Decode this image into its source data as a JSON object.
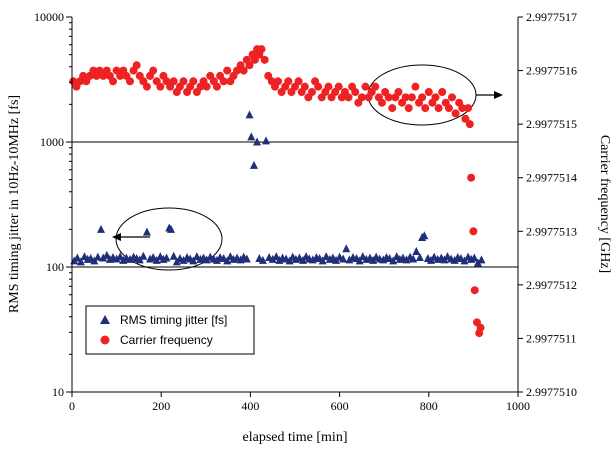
{
  "chart_data": {
    "type": "scatter",
    "xlabel": "elapsed time [min]",
    "ylabel_left": "RMS timing jitter in 10Hz-10MHz [fs]",
    "ylabel_right": "Carrier frequency [GHz]",
    "xlim": [
      0,
      1000
    ],
    "ylim_left": [
      10,
      10000
    ],
    "ylim_right": [
      2.997751,
      2.9977517
    ],
    "yscale_left": "log",
    "x_ticks": [
      "0",
      "200",
      "400",
      "600",
      "800",
      "1000"
    ],
    "y_left_ticks": [
      "10",
      "100",
      "1000",
      "10000"
    ],
    "y_right_ticks": [
      "2.9977510",
      "2.9977511",
      "2.9977512",
      "2.9977513",
      "2.9977514",
      "2.9977515",
      "2.9977516",
      "2.9977517"
    ],
    "gridlines_left": [
      100,
      1000
    ],
    "legend_position": "bottom-left",
    "series": [
      {
        "name": "RMS timing jitter [fs]",
        "axis": "left",
        "color": "#1f2f7a",
        "marker": "triangle",
        "points": [
          [
            5,
            112
          ],
          [
            12,
            118
          ],
          [
            20,
            110
          ],
          [
            28,
            121
          ],
          [
            35,
            115
          ],
          [
            42,
            117
          ],
          [
            50,
            112
          ],
          [
            58,
            120
          ],
          [
            65,
            200
          ],
          [
            70,
            118
          ],
          [
            78,
            124
          ],
          [
            85,
            115
          ],
          [
            92,
            119
          ],
          [
            100,
            116
          ],
          [
            108,
            121
          ],
          [
            115,
            113
          ],
          [
            122,
            118
          ],
          [
            130,
            115
          ],
          [
            138,
            120
          ],
          [
            145,
            117
          ],
          [
            152,
            114
          ],
          [
            160,
            122
          ],
          [
            168,
            190
          ],
          [
            175,
            116
          ],
          [
            182,
            119
          ],
          [
            190,
            113
          ],
          [
            198,
            121
          ],
          [
            205,
            115
          ],
          [
            212,
            118
          ],
          [
            218,
            205
          ],
          [
            222,
            200
          ],
          [
            228,
            122
          ],
          [
            235,
            110
          ],
          [
            242,
            117
          ],
          [
            250,
            113
          ],
          [
            258,
            119
          ],
          [
            265,
            116
          ],
          [
            272,
            112
          ],
          [
            280,
            121
          ],
          [
            288,
            115
          ],
          [
            295,
            118
          ],
          [
            302,
            114
          ],
          [
            310,
            120
          ],
          [
            318,
            116
          ],
          [
            325,
            113
          ],
          [
            332,
            119
          ],
          [
            340,
            117
          ],
          [
            348,
            112
          ],
          [
            355,
            121
          ],
          [
            362,
            115
          ],
          [
            370,
            118
          ],
          [
            378,
            114
          ],
          [
            385,
            120
          ],
          [
            392,
            116
          ],
          [
            398,
            1650
          ],
          [
            402,
            1100
          ],
          [
            408,
            650
          ],
          [
            415,
            1000
          ],
          [
            420,
            117
          ],
          [
            428,
            113
          ],
          [
            435,
            1020
          ],
          [
            442,
            119
          ],
          [
            450,
            115
          ],
          [
            458,
            121
          ],
          [
            465,
            113
          ],
          [
            472,
            118
          ],
          [
            480,
            116
          ],
          [
            488,
            112
          ],
          [
            495,
            120
          ],
          [
            502,
            115
          ],
          [
            510,
            118
          ],
          [
            518,
            113
          ],
          [
            525,
            121
          ],
          [
            532,
            116
          ],
          [
            540,
            114
          ],
          [
            548,
            119
          ],
          [
            555,
            117
          ],
          [
            562,
            112
          ],
          [
            570,
            121
          ],
          [
            578,
            115
          ],
          [
            585,
            118
          ],
          [
            592,
            113
          ],
          [
            600,
            120
          ],
          [
            608,
            116
          ],
          [
            615,
            140
          ],
          [
            622,
            114
          ],
          [
            630,
            119
          ],
          [
            638,
            117
          ],
          [
            645,
            112
          ],
          [
            652,
            121
          ],
          [
            660,
            115
          ],
          [
            668,
            118
          ],
          [
            675,
            113
          ],
          [
            682,
            120
          ],
          [
            690,
            116
          ],
          [
            698,
            114
          ],
          [
            705,
            119
          ],
          [
            712,
            117
          ],
          [
            720,
            112
          ],
          [
            728,
            121
          ],
          [
            735,
            115
          ],
          [
            742,
            118
          ],
          [
            750,
            114
          ],
          [
            758,
            120
          ],
          [
            765,
            116
          ],
          [
            772,
            133
          ],
          [
            780,
            119
          ],
          [
            785,
            172
          ],
          [
            790,
            178
          ],
          [
            798,
            117
          ],
          [
            805,
            113
          ],
          [
            812,
            120
          ],
          [
            820,
            115
          ],
          [
            828,
            118
          ],
          [
            835,
            114
          ],
          [
            842,
            121
          ],
          [
            850,
            116
          ],
          [
            858,
            113
          ],
          [
            865,
            119
          ],
          [
            872,
            117
          ],
          [
            880,
            112
          ],
          [
            888,
            120
          ],
          [
            895,
            115
          ],
          [
            902,
            118
          ],
          [
            910,
            108
          ],
          [
            918,
            114
          ]
        ]
      },
      {
        "name": "Carrier frequency",
        "axis": "right",
        "color": "#ee2222",
        "marker": "circle",
        "points": [
          [
            3,
            2.99775158
          ],
          [
            10,
            2.99775157
          ],
          [
            18,
            2.99775158
          ],
          [
            25,
            2.99775159
          ],
          [
            32,
            2.99775158
          ],
          [
            40,
            2.99775159
          ],
          [
            48,
            2.9977516
          ],
          [
            55,
            2.99775159
          ],
          [
            62,
            2.9977516
          ],
          [
            70,
            2.99775159
          ],
          [
            78,
            2.9977516
          ],
          [
            85,
            2.99775159
          ],
          [
            92,
            2.99775158
          ],
          [
            100,
            2.9977516
          ],
          [
            108,
            2.99775159
          ],
          [
            115,
            2.9977516
          ],
          [
            122,
            2.99775159
          ],
          [
            130,
            2.99775158
          ],
          [
            138,
            2.9977516
          ],
          [
            145,
            2.99775161
          ],
          [
            152,
            2.99775159
          ],
          [
            160,
            2.99775158
          ],
          [
            168,
            2.99775157
          ],
          [
            175,
            2.99775159
          ],
          [
            182,
            2.9977516
          ],
          [
            190,
            2.99775158
          ],
          [
            198,
            2.99775157
          ],
          [
            205,
            2.99775159
          ],
          [
            212,
            2.99775158
          ],
          [
            220,
            2.99775157
          ],
          [
            228,
            2.99775158
          ],
          [
            235,
            2.99775156
          ],
          [
            242,
            2.99775157
          ],
          [
            250,
            2.99775158
          ],
          [
            258,
            2.99775156
          ],
          [
            265,
            2.99775157
          ],
          [
            272,
            2.99775158
          ],
          [
            280,
            2.99775156
          ],
          [
            288,
            2.99775157
          ],
          [
            295,
            2.99775158
          ],
          [
            302,
            2.99775157
          ],
          [
            310,
            2.99775159
          ],
          [
            318,
            2.99775158
          ],
          [
            325,
            2.99775157
          ],
          [
            332,
            2.99775159
          ],
          [
            340,
            2.99775158
          ],
          [
            348,
            2.9977516
          ],
          [
            355,
            2.99775158
          ],
          [
            362,
            2.99775159
          ],
          [
            370,
            2.9977516
          ],
          [
            378,
            2.99775161
          ],
          [
            385,
            2.9977516
          ],
          [
            392,
            2.99775162
          ],
          [
            398,
            2.99775161
          ],
          [
            405,
            2.99775163
          ],
          [
            410,
            2.99775162
          ],
          [
            415,
            2.99775164
          ],
          [
            420,
            2.99775163
          ],
          [
            425,
            2.99775164
          ],
          [
            432,
            2.99775162
          ],
          [
            440,
            2.99775159
          ],
          [
            448,
            2.99775158
          ],
          [
            455,
            2.99775157
          ],
          [
            462,
            2.99775158
          ],
          [
            470,
            2.99775156
          ],
          [
            478,
            2.99775157
          ],
          [
            485,
            2.99775158
          ],
          [
            492,
            2.99775156
          ],
          [
            500,
            2.99775157
          ],
          [
            508,
            2.99775158
          ],
          [
            515,
            2.99775156
          ],
          [
            522,
            2.99775157
          ],
          [
            530,
            2.99775155
          ],
          [
            538,
            2.99775156
          ],
          [
            545,
            2.99775158
          ],
          [
            552,
            2.99775157
          ],
          [
            560,
            2.99775155
          ],
          [
            568,
            2.99775156
          ],
          [
            575,
            2.99775157
          ],
          [
            582,
            2.99775155
          ],
          [
            590,
            2.99775156
          ],
          [
            598,
            2.99775157
          ],
          [
            605,
            2.99775155
          ],
          [
            612,
            2.99775156
          ],
          [
            620,
            2.99775155
          ],
          [
            628,
            2.99775157
          ],
          [
            635,
            2.99775156
          ],
          [
            642,
            2.99775154
          ],
          [
            650,
            2.99775155
          ],
          [
            658,
            2.99775157
          ],
          [
            665,
            2.99775155
          ],
          [
            672,
            2.99775156
          ],
          [
            680,
            2.99775157
          ],
          [
            688,
            2.99775155
          ],
          [
            695,
            2.99775154
          ],
          [
            702,
            2.99775156
          ],
          [
            710,
            2.99775155
          ],
          [
            718,
            2.99775153
          ],
          [
            725,
            2.99775155
          ],
          [
            732,
            2.99775156
          ],
          [
            740,
            2.99775154
          ],
          [
            748,
            2.99775155
          ],
          [
            755,
            2.99775153
          ],
          [
            762,
            2.99775155
          ],
          [
            770,
            2.99775157
          ],
          [
            778,
            2.99775154
          ],
          [
            785,
            2.99775155
          ],
          [
            792,
            2.99775153
          ],
          [
            800,
            2.99775156
          ],
          [
            808,
            2.99775154
          ],
          [
            815,
            2.99775155
          ],
          [
            822,
            2.99775153
          ],
          [
            830,
            2.99775156
          ],
          [
            838,
            2.99775154
          ],
          [
            845,
            2.99775153
          ],
          [
            852,
            2.99775155
          ],
          [
            860,
            2.99775152
          ],
          [
            868,
            2.99775154
          ],
          [
            875,
            2.99775153
          ],
          [
            882,
            2.99775151
          ],
          [
            888,
            2.99775153
          ],
          [
            892,
            2.9977515
          ],
          [
            895,
            2.9977514
          ],
          [
            900,
            2.9977513
          ],
          [
            903,
            2.99775119
          ],
          [
            908,
            2.99775113
          ],
          [
            913,
            2.99775111
          ],
          [
            916,
            2.99775112
          ]
        ]
      }
    ]
  }
}
